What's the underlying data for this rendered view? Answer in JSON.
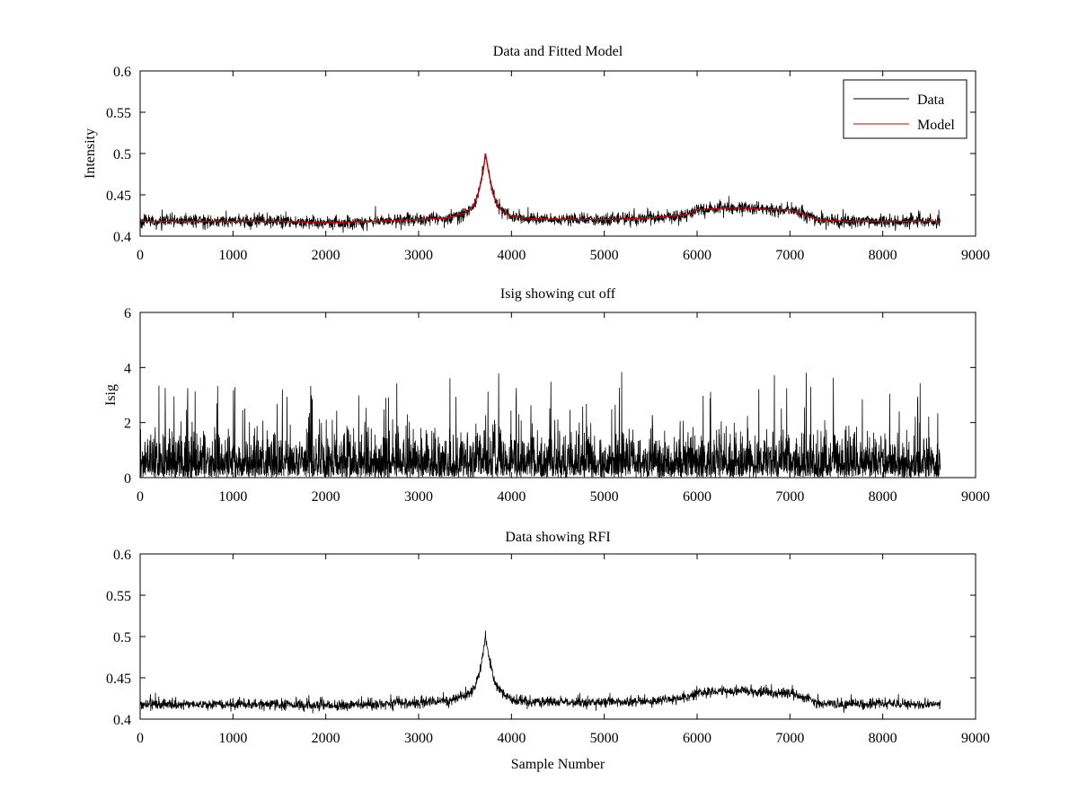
{
  "chart_data": [
    {
      "id": "top",
      "type": "line",
      "title": "Data and Fitted Model",
      "xlabel": "",
      "ylabel": "Intensity",
      "xlim": [
        0,
        9000
      ],
      "ylim": [
        0.4,
        0.6
      ],
      "xticks": [
        0,
        1000,
        2000,
        3000,
        4000,
        5000,
        6000,
        7000,
        8000,
        9000
      ],
      "yticks": [
        0.4,
        0.45,
        0.5,
        0.55,
        0.6
      ],
      "ytick_labels": [
        "0.4",
        "0.45",
        "0.5",
        "0.55",
        "0.6"
      ],
      "legend": {
        "position": "top-right",
        "entries": [
          "Data",
          "Model"
        ]
      },
      "series": [
        {
          "name": "Data",
          "color": "#000000",
          "kind": "noisy",
          "noise": 0.007,
          "x": [
            0,
            500,
            1000,
            1500,
            2000,
            2500,
            3000,
            3300,
            3500,
            3600,
            3650,
            3700,
            3720,
            3750,
            3800,
            3850,
            3900,
            4000,
            4200,
            5000,
            5500,
            5900,
            6000,
            6300,
            6500,
            6800,
            7000,
            7100,
            7300,
            7600,
            8000,
            8620
          ],
          "values": [
            0.418,
            0.418,
            0.418,
            0.418,
            0.416,
            0.418,
            0.42,
            0.422,
            0.428,
            0.438,
            0.455,
            0.482,
            0.5,
            0.48,
            0.452,
            0.438,
            0.43,
            0.424,
            0.421,
            0.42,
            0.422,
            0.426,
            0.432,
            0.434,
            0.434,
            0.432,
            0.432,
            0.428,
            0.42,
            0.418,
            0.418,
            0.418
          ]
        },
        {
          "name": "Model",
          "color": "#cc0000",
          "kind": "smooth",
          "x": [
            0,
            500,
            1000,
            1500,
            2000,
            2500,
            3000,
            3300,
            3500,
            3600,
            3650,
            3700,
            3720,
            3750,
            3800,
            3850,
            3900,
            4000,
            4200,
            5000,
            5500,
            5900,
            6000,
            6300,
            6500,
            6800,
            7000,
            7100,
            7300,
            7600,
            8000,
            8620
          ],
          "values": [
            0.418,
            0.418,
            0.418,
            0.418,
            0.416,
            0.418,
            0.42,
            0.422,
            0.428,
            0.438,
            0.455,
            0.482,
            0.5,
            0.48,
            0.452,
            0.438,
            0.43,
            0.424,
            0.421,
            0.42,
            0.422,
            0.426,
            0.432,
            0.434,
            0.434,
            0.432,
            0.432,
            0.428,
            0.42,
            0.418,
            0.418,
            0.418
          ]
        }
      ]
    },
    {
      "id": "middle",
      "type": "line",
      "title": "Isig showing cut off",
      "xlabel": "",
      "ylabel": "Isig",
      "xlim": [
        0,
        9000
      ],
      "ylim": [
        0,
        6
      ],
      "xticks": [
        0,
        1000,
        2000,
        3000,
        4000,
        5000,
        6000,
        7000,
        8000,
        9000
      ],
      "yticks": [
        0,
        2,
        4,
        6
      ],
      "ytick_labels": [
        "0",
        "2",
        "4",
        "6"
      ],
      "series": [
        {
          "name": "Isig",
          "color": "#000000",
          "kind": "abs-noise",
          "x": [
            0,
            8620
          ],
          "typical_max": 2.0,
          "peak_max": 3.9
        }
      ]
    },
    {
      "id": "bottom",
      "type": "line",
      "title": "Data showing RFI",
      "xlabel": "Sample Number",
      "ylabel": "",
      "xlim": [
        0,
        9000
      ],
      "ylim": [
        0.4,
        0.6
      ],
      "xticks": [
        0,
        1000,
        2000,
        3000,
        4000,
        5000,
        6000,
        7000,
        8000,
        9000
      ],
      "yticks": [
        0.4,
        0.45,
        0.5,
        0.55,
        0.6
      ],
      "ytick_labels": [
        "0.4",
        "0.45",
        "0.5",
        "0.55",
        "0.6"
      ],
      "series": [
        {
          "name": "Data",
          "color": "#000000",
          "kind": "noisy",
          "noise": 0.006,
          "x": [
            0,
            500,
            1000,
            1500,
            2000,
            2500,
            3000,
            3300,
            3500,
            3600,
            3650,
            3700,
            3720,
            3750,
            3800,
            3850,
            3900,
            4000,
            4200,
            5000,
            5500,
            5900,
            6000,
            6300,
            6500,
            6800,
            7000,
            7100,
            7300,
            7600,
            8000,
            8620
          ],
          "values": [
            0.418,
            0.418,
            0.418,
            0.418,
            0.416,
            0.418,
            0.42,
            0.422,
            0.428,
            0.438,
            0.455,
            0.482,
            0.5,
            0.48,
            0.452,
            0.438,
            0.43,
            0.424,
            0.421,
            0.42,
            0.422,
            0.426,
            0.432,
            0.434,
            0.434,
            0.432,
            0.432,
            0.428,
            0.42,
            0.418,
            0.418,
            0.418
          ]
        }
      ]
    }
  ]
}
